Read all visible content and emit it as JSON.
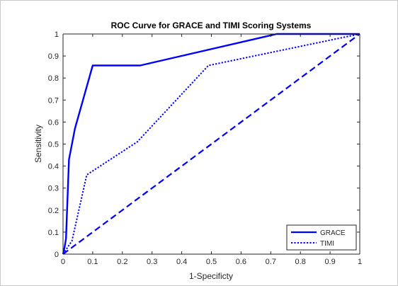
{
  "chart_data": {
    "type": "line",
    "title": "ROC Curve for GRACE and TIMI Scoring Systems",
    "xlabel": "1-Specificty",
    "ylabel": "Sensitivity",
    "xlim": [
      0,
      1
    ],
    "ylim": [
      0,
      1
    ],
    "xticks": [
      "0",
      "0.1",
      "0.2",
      "0.3",
      "0.4",
      "0.5",
      "0.6",
      "0.7",
      "0.8",
      "0.9",
      "1"
    ],
    "yticks": [
      "0",
      "0.1",
      "0.2",
      "0.3",
      "0.4",
      "0.5",
      "0.6",
      "0.7",
      "0.8",
      "0.9",
      "1"
    ],
    "grid": false,
    "legend_position": "bottom-right",
    "series": [
      {
        "name": "GRACE",
        "style": "solid",
        "color": "#0000ff",
        "x": [
          0,
          0.005,
          0.01,
          0.02,
          0.04,
          0.1,
          0.26,
          0.72,
          1.0
        ],
        "y": [
          0,
          0.03,
          0.07,
          0.43,
          0.57,
          0.857,
          0.857,
          1.0,
          1.0
        ]
      },
      {
        "name": "TIMI",
        "style": "dotted",
        "color": "#0000ff",
        "x": [
          0,
          0.01,
          0.03,
          0.08,
          0.25,
          0.49,
          1.0
        ],
        "y": [
          0,
          0.02,
          0.06,
          0.36,
          0.51,
          0.857,
          1.0
        ]
      },
      {
        "name": "",
        "style": "dashed",
        "color": "#0000ff",
        "x": [
          0,
          1
        ],
        "y": [
          0,
          1
        ]
      }
    ]
  }
}
